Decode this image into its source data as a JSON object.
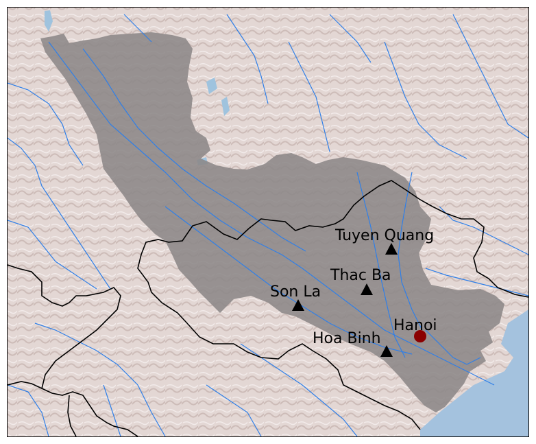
{
  "map": {
    "colors": {
      "terrain": "#e2d6d3",
      "terrain_shadow": "#c9b9b5",
      "basin": "#8c8887",
      "river": "#2f7fe8",
      "sea": "#a4c2de",
      "lake": "#9fc3de",
      "border": "#000000",
      "reservoir_marker": "#000000",
      "city_marker": "#8b0000"
    },
    "reservoirs": [
      {
        "name": "Tuyen Quang",
        "icon": "triangle-marker-icon"
      },
      {
        "name": "Thac Ba",
        "icon": "triangle-marker-icon"
      },
      {
        "name": "Son La",
        "icon": "triangle-marker-icon"
      },
      {
        "name": "Hoa Binh",
        "icon": "triangle-marker-icon"
      }
    ],
    "city": {
      "name": "Hanoi",
      "icon": "circle-marker-icon"
    }
  }
}
